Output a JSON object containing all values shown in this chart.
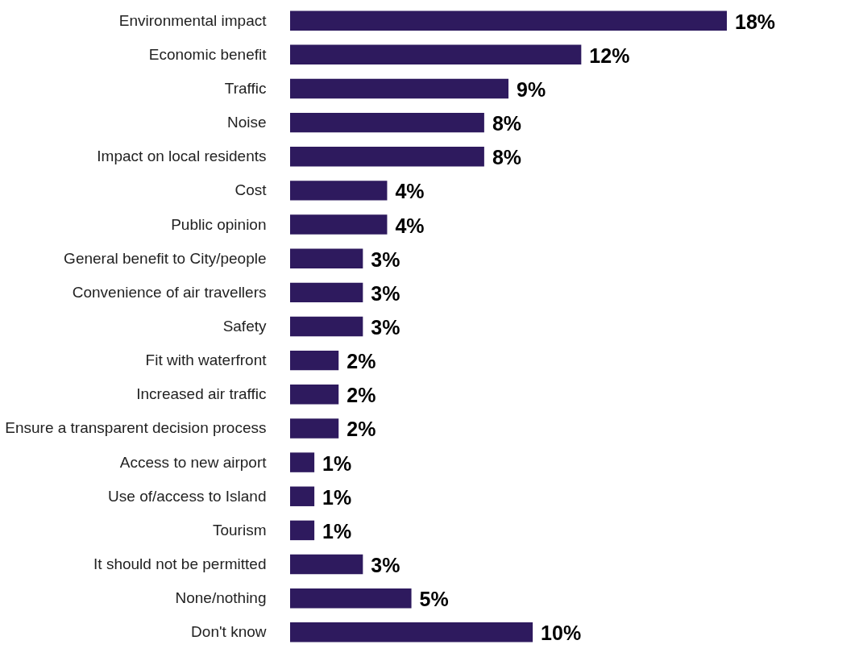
{
  "chart_data": {
    "type": "bar",
    "orientation": "horizontal",
    "categories": [
      "Environmental impact",
      "Economic benefit",
      "Traffic",
      "Noise",
      "Impact on local residents",
      "Cost",
      "Public opinion",
      "General benefit to City/people",
      "Convenience of air travellers",
      "Safety",
      "Fit with waterfront",
      "Increased air traffic",
      "Ensure a transparent decision process",
      "Access to new airport",
      "Use of/access to Island",
      "Tourism",
      "It should not be permitted",
      "None/nothing",
      "Don't know"
    ],
    "values": [
      18,
      12,
      9,
      8,
      8,
      4,
      4,
      3,
      3,
      3,
      2,
      2,
      2,
      1,
      1,
      1,
      3,
      5,
      10
    ],
    "value_labels": [
      "18%",
      "12%",
      "9%",
      "8%",
      "8%",
      "4%",
      "4%",
      "3%",
      "3%",
      "3%",
      "2%",
      "2%",
      "2%",
      "1%",
      "1%",
      "1%",
      "3%",
      "5%",
      "10%"
    ],
    "color": "#2e1a5e",
    "tick_labels": "y"
  }
}
